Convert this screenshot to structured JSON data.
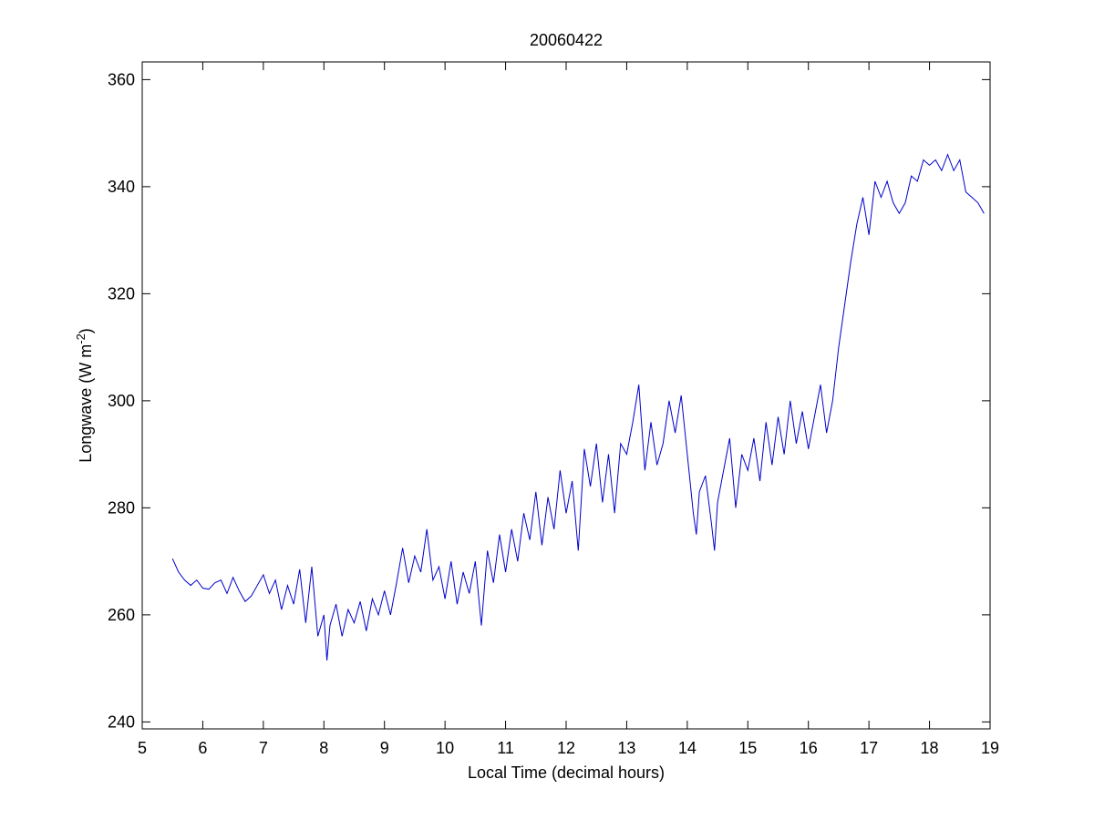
{
  "chart_data": {
    "type": "line",
    "title": "20060422",
    "xlabel": "Local Time (decimal hours)",
    "ylabel": [
      "Longwave (W m",
      "-2",
      ")"
    ],
    "x": [
      5.5,
      5.6,
      5.7,
      5.8,
      5.9,
      6.0,
      6.1,
      6.2,
      6.3,
      6.4,
      6.5,
      6.6,
      6.7,
      6.8,
      6.9,
      7.0,
      7.1,
      7.2,
      7.3,
      7.4,
      7.5,
      7.6,
      7.7,
      7.8,
      7.9,
      8.0,
      8.05,
      8.1,
      8.2,
      8.3,
      8.4,
      8.5,
      8.6,
      8.7,
      8.8,
      8.9,
      9.0,
      9.1,
      9.2,
      9.3,
      9.4,
      9.5,
      9.6,
      9.7,
      9.8,
      9.9,
      10.0,
      10.1,
      10.2,
      10.3,
      10.4,
      10.5,
      10.6,
      10.7,
      10.8,
      10.9,
      11.0,
      11.1,
      11.2,
      11.3,
      11.4,
      11.5,
      11.6,
      11.7,
      11.8,
      11.9,
      12.0,
      12.1,
      12.2,
      12.3,
      12.4,
      12.5,
      12.6,
      12.7,
      12.8,
      12.9,
      13.0,
      13.1,
      13.2,
      13.3,
      13.4,
      13.5,
      13.6,
      13.7,
      13.8,
      13.9,
      14.0,
      14.1,
      14.15,
      14.2,
      14.3,
      14.4,
      14.45,
      14.5,
      14.6,
      14.7,
      14.8,
      14.9,
      15.0,
      15.1,
      15.2,
      15.3,
      15.4,
      15.5,
      15.6,
      15.7,
      15.8,
      15.9,
      16.0,
      16.1,
      16.2,
      16.3,
      16.4,
      16.5,
      16.6,
      16.7,
      16.8,
      16.9,
      17.0,
      17.1,
      17.2,
      17.3,
      17.4,
      17.5,
      17.6,
      17.7,
      17.8,
      17.9,
      18.0,
      18.1,
      18.2,
      18.3,
      18.4,
      18.5,
      18.6,
      18.7,
      18.8,
      18.9
    ],
    "series": [
      {
        "color": "#0000cc",
        "values": [
          270.5,
          268,
          266.5,
          265.5,
          266.5,
          265,
          264.8,
          266,
          266.5,
          264,
          267,
          264.5,
          262.5,
          263.5,
          265.5,
          267.5,
          264,
          266.5,
          261,
          265.5,
          262,
          268.5,
          258.5,
          269,
          256,
          260,
          251.5,
          258,
          262,
          256,
          261,
          258.5,
          262.5,
          257,
          263,
          260,
          264.5,
          260,
          266,
          272.5,
          266,
          271,
          268,
          276,
          266.5,
          269,
          263,
          270,
          262,
          268,
          264,
          270,
          258,
          272,
          266,
          275,
          268,
          276,
          270,
          279,
          274,
          283,
          273,
          282,
          276,
          287,
          279,
          285,
          272,
          291,
          284,
          292,
          281,
          290,
          279,
          292,
          290,
          296,
          303,
          287,
          296,
          288,
          292,
          300,
          294,
          301,
          290,
          279,
          275,
          283,
          286,
          277,
          272,
          281,
          287,
          293,
          280,
          290,
          287,
          293,
          285,
          296,
          288,
          297,
          290,
          300,
          292,
          298,
          291,
          297,
          303,
          294,
          300,
          310,
          318,
          326,
          333,
          338,
          331,
          341,
          338,
          341,
          337,
          335,
          337,
          342,
          341,
          345,
          344,
          345,
          343,
          346,
          343,
          345,
          339,
          338,
          337,
          335
        ]
      }
    ],
    "xlim": [
      5,
      19
    ],
    "xticks": [
      5,
      6,
      7,
      8,
      9,
      10,
      11,
      12,
      13,
      14,
      15,
      16,
      17,
      18,
      19
    ],
    "ylim": [
      238.7,
      363.3
    ],
    "yticks": [
      240,
      260,
      280,
      300,
      320,
      340,
      360
    ],
    "grid": false
  }
}
